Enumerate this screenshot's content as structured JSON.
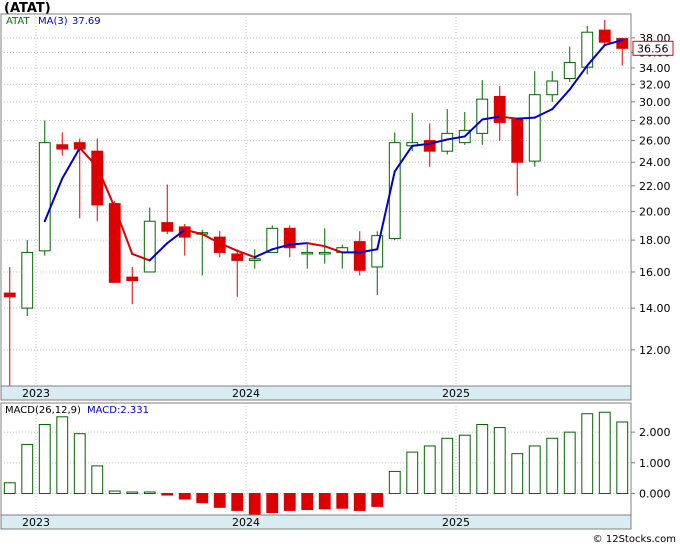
{
  "title": "(ATAT)",
  "price_panel": {
    "legend_ticker": "ATAT",
    "legend_ma": "MA(3)",
    "legend_ma_value": "37.69",
    "last_price_label": "36.56",
    "last_price": 36.56
  },
  "macd_panel": {
    "legend_params": "MACD(26,12,9)",
    "legend_value": "MACD:2.331"
  },
  "footer": "© 12Stocks.com",
  "chart_data": [
    {
      "type": "candlestick",
      "scale": "log",
      "ylim": [
        10.5,
        41.5
      ],
      "y_ticks": [
        "12.00",
        "14.00",
        "16.00",
        "18.00",
        "20.00",
        "22.00",
        "24.00",
        "26.00",
        "28.00",
        "30.00",
        "32.00",
        "34.00",
        "36.00",
        "38.00"
      ],
      "y_tick_values": [
        12,
        14,
        16,
        18,
        20,
        22,
        24,
        26,
        28,
        30,
        32,
        34,
        36,
        38
      ],
      "x_labels": [
        "2023",
        "2024",
        "2025"
      ],
      "x_label_bar_index": [
        2,
        14,
        26
      ],
      "colors": {
        "up": "#006400",
        "down": "#dd0000",
        "ma_up": "#0000cc",
        "ma_down": "#dd0000"
      },
      "candles": [
        {
          "o": 14.8,
          "h": 16.3,
          "l": 10.4,
          "c": 14.6
        },
        {
          "o": 14.0,
          "h": 18.0,
          "l": 13.6,
          "c": 17.2
        },
        {
          "o": 17.3,
          "h": 28.0,
          "l": 17.0,
          "c": 25.8
        },
        {
          "o": 25.6,
          "h": 26.8,
          "l": 24.6,
          "c": 25.2
        },
        {
          "o": 25.8,
          "h": 26.2,
          "l": 19.5,
          "c": 25.2
        },
        {
          "o": 25.0,
          "h": 26.2,
          "l": 19.3,
          "c": 20.5
        },
        {
          "o": 20.6,
          "h": 20.8,
          "l": 15.4,
          "c": 15.4
        },
        {
          "o": 15.7,
          "h": 16.3,
          "l": 14.2,
          "c": 15.5
        },
        {
          "o": 16.0,
          "h": 20.3,
          "l": 16.0,
          "c": 19.3
        },
        {
          "o": 19.2,
          "h": 22.1,
          "l": 18.4,
          "c": 18.6
        },
        {
          "o": 18.9,
          "h": 19.1,
          "l": 17.0,
          "c": 18.2
        },
        {
          "o": 18.5,
          "h": 18.7,
          "l": 15.8,
          "c": 18.5
        },
        {
          "o": 18.2,
          "h": 18.6,
          "l": 16.9,
          "c": 17.2
        },
        {
          "o": 17.1,
          "h": 17.4,
          "l": 14.6,
          "c": 16.7
        },
        {
          "o": 16.7,
          "h": 17.4,
          "l": 16.2,
          "c": 16.8
        },
        {
          "o": 17.2,
          "h": 19.0,
          "l": 17.2,
          "c": 18.8
        },
        {
          "o": 18.8,
          "h": 19.0,
          "l": 16.9,
          "c": 17.5
        },
        {
          "o": 17.2,
          "h": 17.8,
          "l": 16.2,
          "c": 17.2
        },
        {
          "o": 17.1,
          "h": 18.8,
          "l": 16.5,
          "c": 17.2
        },
        {
          "o": 17.2,
          "h": 17.7,
          "l": 16.2,
          "c": 17.5
        },
        {
          "o": 17.9,
          "h": 18.6,
          "l": 15.8,
          "c": 16.1
        },
        {
          "o": 16.3,
          "h": 18.6,
          "l": 14.7,
          "c": 18.3
        },
        {
          "o": 18.1,
          "h": 26.8,
          "l": 18.0,
          "c": 25.8
        },
        {
          "o": 25.5,
          "h": 28.8,
          "l": 25.0,
          "c": 25.8
        },
        {
          "o": 26.0,
          "h": 27.7,
          "l": 23.6,
          "c": 25.0
        },
        {
          "o": 25.0,
          "h": 29.2,
          "l": 24.7,
          "c": 26.7
        },
        {
          "o": 25.8,
          "h": 28.9,
          "l": 25.6,
          "c": 27.0
        },
        {
          "o": 26.7,
          "h": 32.5,
          "l": 25.6,
          "c": 30.3
        },
        {
          "o": 30.6,
          "h": 31.8,
          "l": 26.0,
          "c": 27.8
        },
        {
          "o": 28.2,
          "h": 28.3,
          "l": 21.2,
          "c": 24.0
        },
        {
          "o": 24.1,
          "h": 33.6,
          "l": 23.6,
          "c": 30.8
        },
        {
          "o": 30.8,
          "h": 33.6,
          "l": 30.0,
          "c": 32.4
        },
        {
          "o": 32.7,
          "h": 36.8,
          "l": 32.3,
          "c": 34.7
        },
        {
          "o": 34.1,
          "h": 39.7,
          "l": 33.2,
          "c": 38.8
        },
        {
          "o": 39.1,
          "h": 40.6,
          "l": 37.0,
          "c": 37.4
        },
        {
          "o": 37.9,
          "h": 38.0,
          "l": 34.3,
          "c": 36.56
        }
      ],
      "ma3": [
        null,
        null,
        19.3,
        22.6,
        25.3,
        23.6,
        20.3,
        17.1,
        16.7,
        17.8,
        18.7,
        18.4,
        17.8,
        17.3,
        16.9,
        17.4,
        17.7,
        17.8,
        17.6,
        17.2,
        17.2,
        17.4,
        23.2,
        25.5,
        25.7,
        26.1,
        26.4,
        28.1,
        28.4,
        28.2,
        28.3,
        29.2,
        31.4,
        34.3,
        37.0,
        37.69
      ]
    },
    {
      "type": "bar",
      "series_name": "MACD(26,12,9)",
      "ylim": [
        -0.7,
        2.95
      ],
      "y_ticks": [
        "0.000",
        "1.000",
        "2.000"
      ],
      "y_tick_values": [
        0,
        1,
        2
      ],
      "x_labels": [
        "2023",
        "2024",
        "2025"
      ],
      "x_label_bar_index": [
        2,
        14,
        26
      ],
      "colors": {
        "positive": "#006400",
        "negative": "#dd0000"
      },
      "values": [
        0.35,
        1.6,
        2.25,
        2.5,
        1.95,
        0.9,
        0.08,
        0.05,
        0.05,
        -0.05,
        -0.18,
        -0.3,
        -0.45,
        -0.55,
        -0.72,
        -0.62,
        -0.55,
        -0.52,
        -0.5,
        -0.48,
        -0.55,
        -0.42,
        0.72,
        1.35,
        1.55,
        1.8,
        1.9,
        2.25,
        2.15,
        1.3,
        1.55,
        1.8,
        2.0,
        2.6,
        2.65,
        2.331
      ]
    }
  ]
}
